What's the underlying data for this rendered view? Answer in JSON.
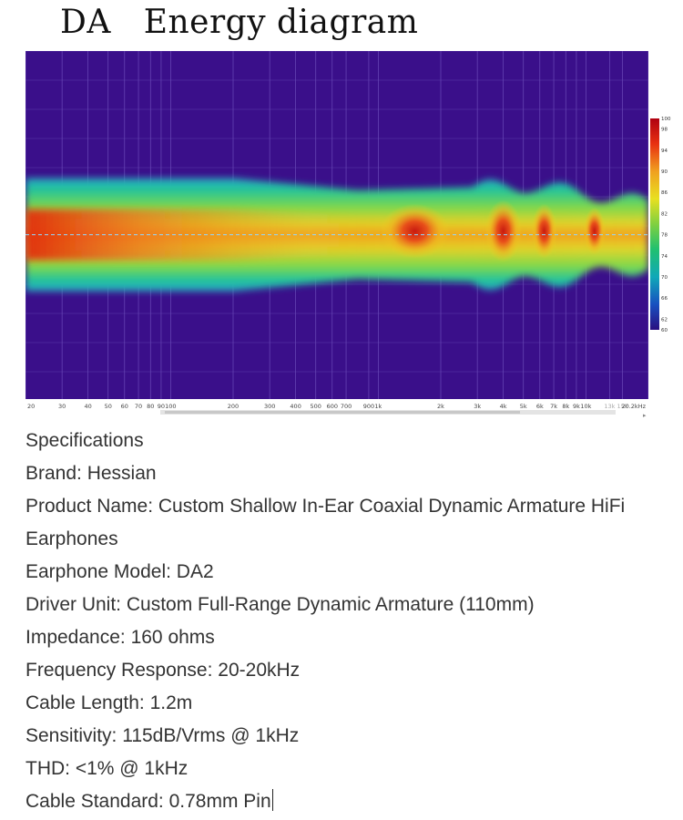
{
  "page": {
    "title": "DA   Energy diagram"
  },
  "chart_data": {
    "type": "heatmap",
    "title": "DA   Energy diagram",
    "xscale": "log",
    "xlim": [
      20,
      20000
    ],
    "x_tick_labels": [
      "20",
      "30",
      "40",
      "50",
      "60",
      "70",
      "80",
      "90",
      "100",
      "200",
      "300",
      "400",
      "500",
      "600",
      "700",
      "900",
      "1k",
      "2k",
      "3k",
      "4k",
      "5k",
      "6k",
      "7k",
      "8k",
      "9k",
      "10k",
      "13k",
      "15k",
      "20.2kHz"
    ],
    "x_tick_values": [
      20,
      30,
      40,
      50,
      60,
      70,
      80,
      90,
      100,
      200,
      300,
      400,
      500,
      600,
      700,
      900,
      1000,
      2000,
      3000,
      4000,
      5000,
      6000,
      7000,
      8000,
      9000,
      10000,
      13000,
      15000,
      20200
    ],
    "colorbar": {
      "max": 100,
      "min": 60,
      "tick_labels": [
        "100",
        "98",
        "94",
        "90",
        "86",
        "82",
        "78",
        "74",
        "70",
        "66",
        "62",
        "60"
      ],
      "tick_values": [
        100,
        98,
        94,
        90,
        86,
        82,
        78,
        74,
        70,
        66,
        62,
        60
      ]
    },
    "reference_level": 78,
    "hot_spots_hz": [
      1500,
      4000,
      6300,
      11000
    ],
    "colors": {
      "background": "#3a0f8a",
      "band_outer": "#1fbf9a",
      "band_mid": "#d8d82a",
      "band_core": "#e04010",
      "reference_line": "#7fd0ff"
    }
  },
  "specs": {
    "heading": "Specifications",
    "brand": "Brand: Hessian",
    "product_name_1": "Product Name: Custom Shallow In-Ear Coaxial Dynamic Armature HiFi",
    "product_name_2": "Earphones",
    "model": "Earphone Model: DA2",
    "driver": "Driver Unit: Custom Full-Range Dynamic Armature (110mm)",
    "impedance": "Impedance: 160 ohms",
    "frequency": "Frequency Response: 20-20kHz",
    "cable_length": "Cable Length: 1.2m",
    "sensitivity": "Sensitivity: 115dB/Vrms @ 1kHz",
    "thd": "THD: <1% @ 1kHz",
    "cable_standard": "Cable Standard: 0.78mm Pin"
  }
}
